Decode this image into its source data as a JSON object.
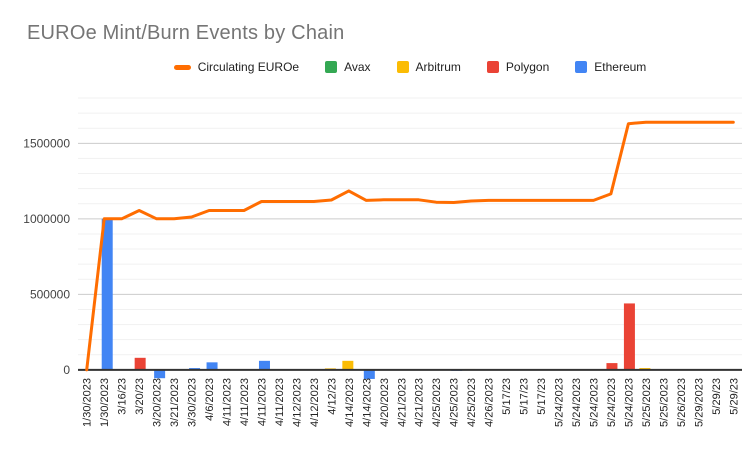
{
  "title": "EUROe Mint/Burn Events by Chain",
  "legend": [
    {
      "label": "Circulating EUROe",
      "color": "#FF6D01",
      "marker": "line"
    },
    {
      "label": "Avax",
      "color": "#34A853",
      "marker": "square"
    },
    {
      "label": "Arbitrum",
      "color": "#FBBC04",
      "marker": "square"
    },
    {
      "label": "Polygon",
      "color": "#EA4335",
      "marker": "square"
    },
    {
      "label": "Ethereum",
      "color": "#4285F4",
      "marker": "square"
    }
  ],
  "colors": {
    "title_text": "#757575",
    "legend_text": "#222222",
    "y_tick_text": "#444444",
    "x_tick_text": "#222222",
    "major_grid": "#cccccc",
    "minor_grid": "#f1f1f1",
    "axis_baseline": "#333333"
  },
  "chart_data": {
    "type": "combo (line + grouped bar)",
    "title": "EUROe Mint/Burn Events by Chain",
    "xlabel": "",
    "ylabel": "",
    "legend_position": "top",
    "grid": true,
    "categories": [
      "1/30/2023",
      "1/30/2023",
      "3/16/23",
      "3/20/23",
      "3/20/2023",
      "3/21/2023",
      "3/30/2023",
      "4/6/2023",
      "4/11/2023",
      "4/11/2023",
      "4/11/2023",
      "4/11/2023",
      "4/12/2023",
      "4/12/2023",
      "4/12/23",
      "4/14/2023",
      "4/14/2023",
      "4/20/2023",
      "4/21/2023",
      "4/21/2023",
      "4/25/2023",
      "4/25/2023",
      "4/25/2023",
      "4/26/2023",
      "5/17/23",
      "5/17/23",
      "5/17/23",
      "5/24/2023",
      "5/24/2023",
      "5/24/2023",
      "5/24/2023",
      "5/24/2023",
      "5/25/2023",
      "5/25/2023",
      "5/26/2023",
      "5/29/2023",
      "5/29/23",
      "5/29/23"
    ],
    "series": [
      {
        "name": "Circulating EUROe",
        "type": "line",
        "color": "#FF6D01",
        "values": [
          0,
          1000000,
          1000000,
          1055000,
          1000000,
          1000000,
          1012000,
          1055000,
          1055000,
          1055000,
          1115000,
          1115000,
          1115000,
          1115000,
          1125000,
          1185000,
          1122000,
          1126000,
          1126000,
          1126000,
          1110000,
          1108000,
          1118000,
          1122000,
          1122000,
          1122000,
          1122000,
          1122000,
          1122000,
          1122000,
          1165000,
          1630000,
          1640000,
          1640000,
          1640000,
          1640000,
          1640000,
          1640000
        ]
      },
      {
        "name": "Avax",
        "type": "bar",
        "color": "#34A853",
        "values": [
          0,
          0,
          0,
          0,
          0,
          0,
          0,
          0,
          0,
          0,
          0,
          0,
          0,
          0,
          0,
          0,
          0,
          0,
          0,
          0,
          0,
          0,
          0,
          0,
          0,
          0,
          0,
          0,
          0,
          0,
          0,
          0,
          0,
          0,
          0,
          0,
          0,
          0
        ]
      },
      {
        "name": "Arbitrum",
        "type": "bar",
        "color": "#FBBC04",
        "values": [
          0,
          0,
          0,
          0,
          0,
          0,
          0,
          0,
          0,
          0,
          0,
          0,
          0,
          0,
          10000,
          60000,
          0,
          0,
          0,
          0,
          0,
          0,
          6000,
          0,
          0,
          0,
          0,
          0,
          0,
          0,
          0,
          0,
          12000,
          0,
          0,
          0,
          0,
          0
        ]
      },
      {
        "name": "Polygon",
        "type": "bar",
        "color": "#EA4335",
        "values": [
          0,
          0,
          0,
          80000,
          0,
          0,
          0,
          0,
          0,
          0,
          0,
          0,
          0,
          0,
          0,
          0,
          0,
          0,
          0,
          0,
          0,
          0,
          0,
          0,
          0,
          0,
          0,
          0,
          0,
          0,
          45000,
          440000,
          0,
          0,
          0,
          0,
          0,
          0
        ]
      },
      {
        "name": "Ethereum",
        "type": "bar",
        "color": "#4285F4",
        "values": [
          0,
          1000000,
          0,
          0,
          -55000,
          0,
          12000,
          50000,
          0,
          0,
          60000,
          0,
          0,
          0,
          0,
          0,
          -60000,
          5000,
          0,
          0,
          0,
          -6000,
          0,
          0,
          0,
          0,
          0,
          0,
          0,
          0,
          0,
          0,
          0,
          0,
          0,
          0,
          0,
          0
        ]
      }
    ],
    "y_axis": {
      "min": -100000,
      "max": 1800000,
      "major_ticks": [
        0,
        500000,
        1000000,
        1500000
      ],
      "tick_labels": [
        "0",
        "500000",
        "1000000",
        "1500000"
      ],
      "minor_step": 100000
    }
  }
}
